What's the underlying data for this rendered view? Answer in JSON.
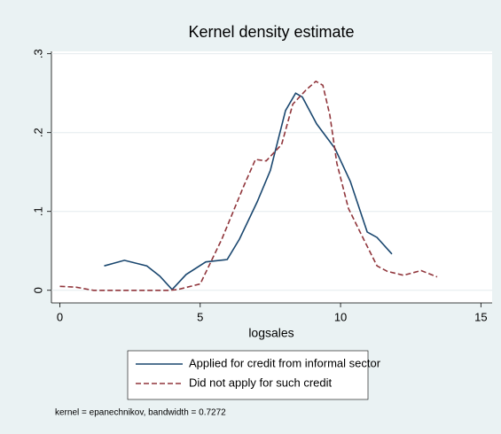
{
  "chart_data": {
    "type": "line",
    "title": "Kernel density estimate",
    "x_label": "logsales",
    "note": "kernel = epanechnikov, bandwidth = 0.7272",
    "xlim": [
      -0.3,
      15.4
    ],
    "ylim": [
      -0.016,
      0.303
    ],
    "xticks": [
      0,
      5,
      10,
      15
    ],
    "yticks": [
      0,
      {
        "value": 0.1,
        "label": ".1"
      },
      {
        "value": 0.2,
        "label": ".2"
      },
      {
        "value": 0.3,
        "label": ".3"
      }
    ],
    "grid": true,
    "legend": "bottom",
    "series": [
      {
        "name": "Applied for credit from informal sector",
        "color": "#1a476f",
        "line_style": "solid",
        "x": [
          1.58,
          2.3,
          3.1,
          3.56,
          4.0,
          4.5,
          5.2,
          5.96,
          6.4,
          7.03,
          7.5,
          8.04,
          8.4,
          8.64,
          9.15,
          9.8,
          10.35,
          10.95,
          11.3,
          11.83
        ],
        "values": [
          0.031,
          0.038,
          0.031,
          0.018,
          0.001,
          0.02,
          0.036,
          0.039,
          0.065,
          0.112,
          0.152,
          0.228,
          0.25,
          0.245,
          0.211,
          0.18,
          0.138,
          0.074,
          0.067,
          0.046
        ]
      },
      {
        "name": "Did not apply for such credit",
        "color": "#90353b",
        "line_style": "dashed",
        "x": [
          0,
          0.57,
          1.2,
          3.88,
          4.2,
          5.0,
          5.77,
          6.56,
          6.97,
          7.35,
          7.9,
          8.3,
          8.77,
          9.12,
          9.37,
          9.62,
          9.87,
          10.28,
          10.82,
          11.3,
          11.67,
          12.24,
          12.87,
          13.44
        ],
        "values": [
          0.005,
          0.004,
          0,
          0,
          0.001,
          0.008,
          0.065,
          0.133,
          0.166,
          0.164,
          0.185,
          0.236,
          0.254,
          0.265,
          0.26,
          0.222,
          0.161,
          0.104,
          0.065,
          0.031,
          0.024,
          0.019,
          0.025,
          0.017
        ]
      }
    ]
  }
}
